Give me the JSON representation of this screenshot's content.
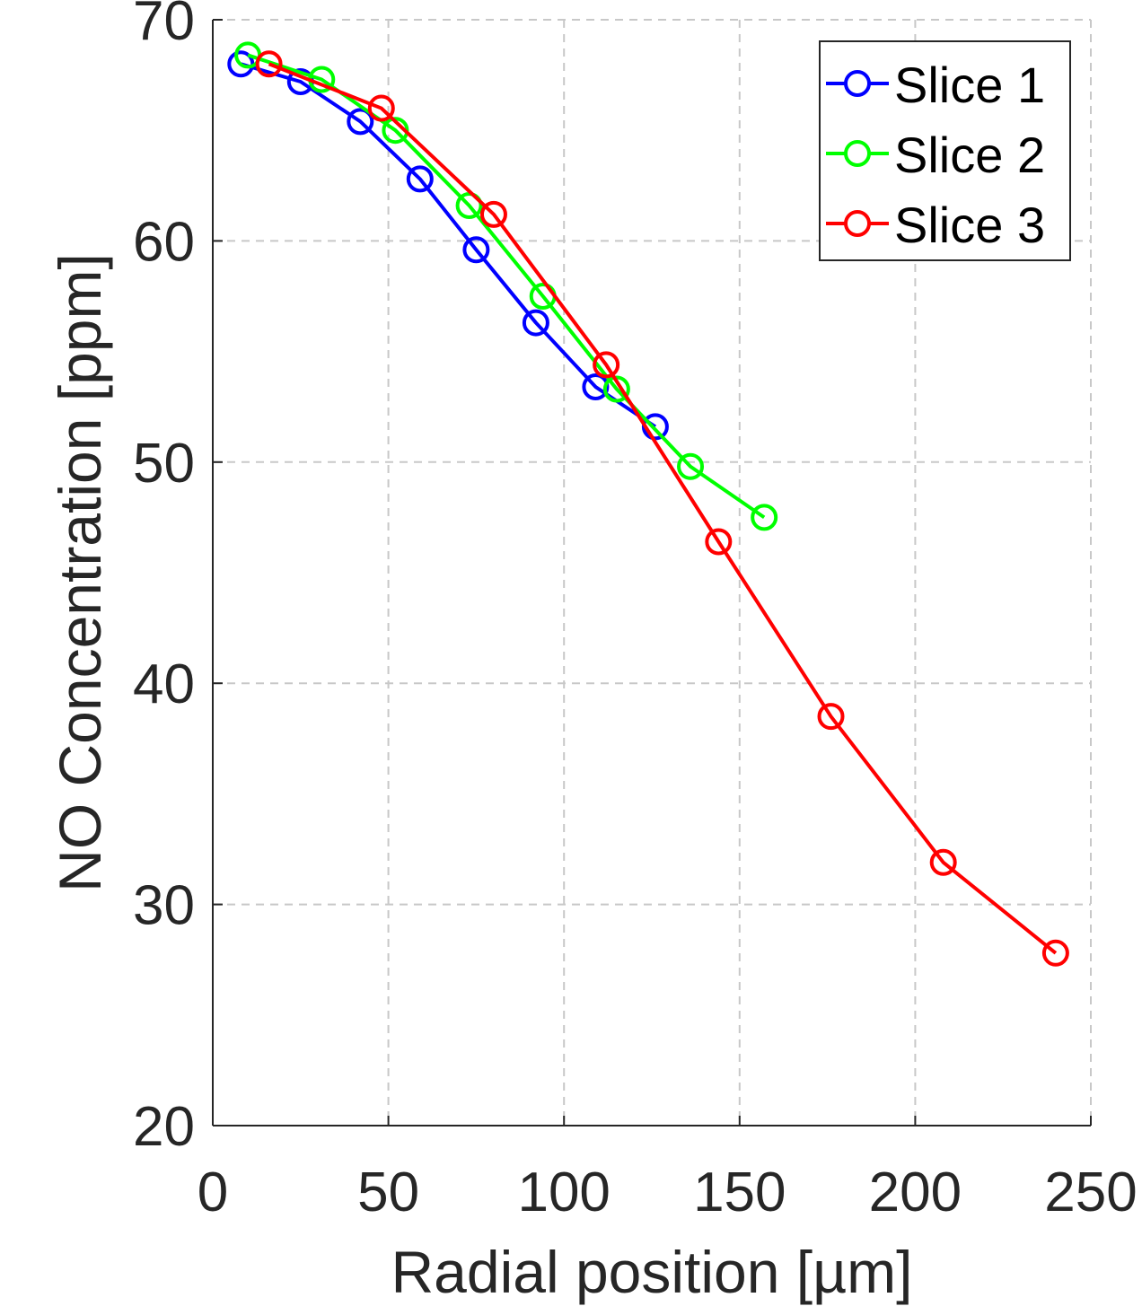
{
  "chart_data": {
    "type": "line",
    "title": "",
    "xlabel": "Radial position [µm]",
    "ylabel": "NO Concentration [ppm]",
    "xlim": [
      0,
      250
    ],
    "ylim": [
      20,
      70
    ],
    "xticks": [
      0,
      50,
      100,
      150,
      200,
      250
    ],
    "yticks": [
      20,
      30,
      40,
      50,
      60,
      70
    ],
    "xtick_labels": [
      "0",
      "50",
      "100",
      "150",
      "200",
      "250"
    ],
    "ytick_labels": [
      "20",
      "30",
      "40",
      "50",
      "60",
      "70"
    ],
    "grid": true,
    "legend_position": "top-right",
    "marker": "circle",
    "series": [
      {
        "name": "Slice 1",
        "color": "#0000ff",
        "x": [
          8,
          25,
          42,
          59,
          75,
          92,
          109,
          126
        ],
        "y": [
          68.0,
          67.2,
          65.4,
          62.8,
          59.6,
          56.3,
          53.4,
          51.6
        ]
      },
      {
        "name": "Slice 2",
        "color": "#00ff00",
        "x": [
          10,
          31,
          52,
          73,
          94,
          115,
          136,
          157
        ],
        "y": [
          68.4,
          67.3,
          65.0,
          61.6,
          57.5,
          53.3,
          49.8,
          47.5
        ]
      },
      {
        "name": "Slice 3",
        "color": "#ff0000",
        "x": [
          16,
          48,
          80,
          112,
          144,
          176,
          208,
          240
        ],
        "y": [
          68.0,
          66.0,
          61.2,
          54.4,
          46.4,
          38.5,
          31.9,
          27.8
        ]
      }
    ]
  }
}
